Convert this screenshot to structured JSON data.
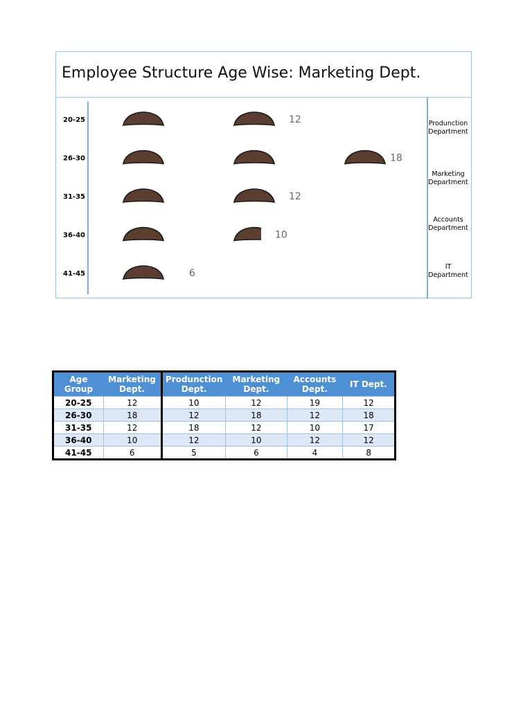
{
  "chart_data": {
    "type": "pictograph",
    "title": "Employee Structure Age Wise: Marketing Dept.",
    "categories": [
      "20-25",
      "26-30",
      "31-35",
      "36-40",
      "41-45"
    ],
    "values": [
      12,
      18,
      12,
      10,
      6
    ],
    "icon_value": 6,
    "color": "#5c3d31",
    "side_labels": [
      "Produnction Department",
      "Marketing Department",
      "Accounts Department",
      "IT Department"
    ]
  },
  "table": {
    "header": [
      "Age Group",
      "Marketing Dept.",
      "Produnction Dept.",
      "Marketing Dept.",
      "Accounts Dept.",
      "IT Dept."
    ],
    "rows": [
      [
        "20-25",
        "12",
        "10",
        "12",
        "19",
        "12"
      ],
      [
        "26-30",
        "18",
        "12",
        "18",
        "12",
        "18"
      ],
      [
        "31-35",
        "12",
        "18",
        "12",
        "10",
        "17"
      ],
      [
        "36-40",
        "10",
        "12",
        "10",
        "12",
        "12"
      ],
      [
        "41-45",
        "6",
        "5",
        "6",
        "4",
        "8"
      ]
    ]
  }
}
